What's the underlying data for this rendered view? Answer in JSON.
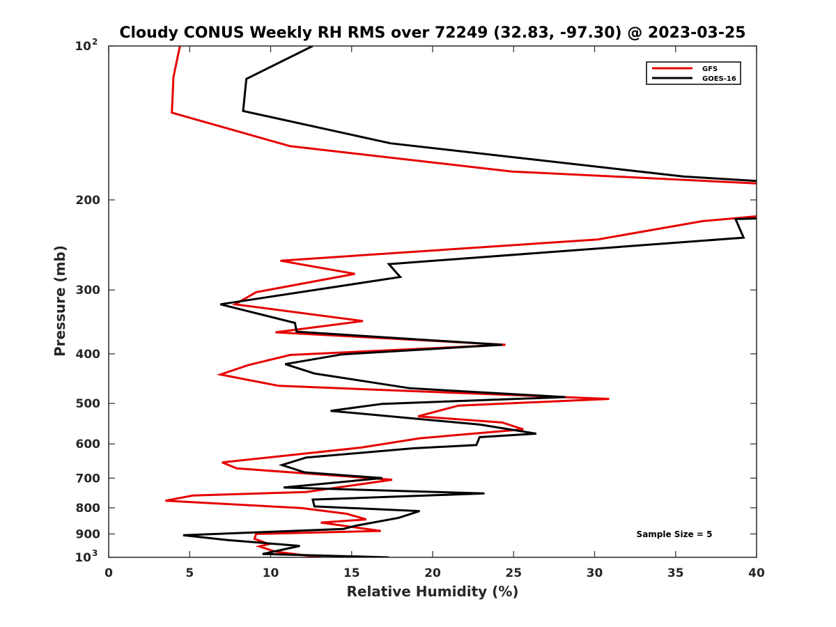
{
  "chart_data": {
    "type": "line",
    "title": "Cloudy CONUS Weekly RH RMS over 72249 (32.83, -97.30) @ 2023-03-25",
    "xlabel": "Relative Humidity (%)",
    "ylabel": "Pressure (mb)",
    "xlim": [
      0,
      40
    ],
    "ylim": [
      100,
      1000
    ],
    "yscale": "log",
    "y_reversed": true,
    "x_ticks": [
      0,
      5,
      10,
      15,
      20,
      25,
      30,
      35,
      40
    ],
    "x_tick_labels": [
      "0",
      "5",
      "10",
      "15",
      "20",
      "25",
      "30",
      "35",
      "40"
    ],
    "y_ticks": [
      {
        "value": 100,
        "base": "10",
        "exp": "2"
      },
      {
        "value": 200,
        "label": "200"
      },
      {
        "value": 300,
        "label": "300"
      },
      {
        "value": 400,
        "label": "400"
      },
      {
        "value": 500,
        "label": "500"
      },
      {
        "value": 600,
        "label": "600"
      },
      {
        "value": 700,
        "label": "700"
      },
      {
        "value": 800,
        "label": "800"
      },
      {
        "value": 900,
        "label": "900"
      },
      {
        "value": 1000,
        "base": "10",
        "exp": "3"
      }
    ],
    "grid": false,
    "legend_position": "top-right",
    "annotation": "Sample Size = 5",
    "series": [
      {
        "name": "GFS",
        "color": "#e60000",
        "points": [
          {
            "x": 4.4,
            "y": 100
          },
          {
            "x": 4.0,
            "y": 115
          },
          {
            "x": 3.9,
            "y": 135
          },
          {
            "x": 11.2,
            "y": 157
          },
          {
            "x": 24.9,
            "y": 176
          },
          {
            "x": 40.5,
            "y": 186
          },
          {
            "x": 41.0,
            "y": 214
          },
          {
            "x": 36.7,
            "y": 220
          },
          {
            "x": 30.2,
            "y": 239
          },
          {
            "x": 10.6,
            "y": 263
          },
          {
            "x": 15.2,
            "y": 279
          },
          {
            "x": 9.1,
            "y": 303
          },
          {
            "x": 7.8,
            "y": 320
          },
          {
            "x": 15.7,
            "y": 345
          },
          {
            "x": 10.3,
            "y": 363
          },
          {
            "x": 24.5,
            "y": 384
          },
          {
            "x": 11.2,
            "y": 402
          },
          {
            "x": 8.6,
            "y": 421
          },
          {
            "x": 6.9,
            "y": 439
          },
          {
            "x": 10.5,
            "y": 462
          },
          {
            "x": 30.9,
            "y": 490
          },
          {
            "x": 21.6,
            "y": 505
          },
          {
            "x": 19.1,
            "y": 530
          },
          {
            "x": 24.3,
            "y": 545
          },
          {
            "x": 25.6,
            "y": 562
          },
          {
            "x": 19.2,
            "y": 585
          },
          {
            "x": 15.6,
            "y": 610
          },
          {
            "x": 7.0,
            "y": 652
          },
          {
            "x": 7.9,
            "y": 670
          },
          {
            "x": 17.5,
            "y": 705
          },
          {
            "x": 12.2,
            "y": 745
          },
          {
            "x": 5.2,
            "y": 757
          },
          {
            "x": 3.5,
            "y": 775
          },
          {
            "x": 11.9,
            "y": 801
          },
          {
            "x": 14.7,
            "y": 822
          },
          {
            "x": 15.9,
            "y": 843
          },
          {
            "x": 13.1,
            "y": 855
          },
          {
            "x": 16.8,
            "y": 888
          },
          {
            "x": 9.1,
            "y": 900
          },
          {
            "x": 9.0,
            "y": 920
          },
          {
            "x": 9.9,
            "y": 942
          },
          {
            "x": 9.3,
            "y": 952
          },
          {
            "x": 10.3,
            "y": 975
          },
          {
            "x": 13.1,
            "y": 1000
          }
        ]
      },
      {
        "name": "GOES-16",
        "color": "#000000",
        "points": [
          {
            "x": 12.6,
            "y": 100
          },
          {
            "x": 8.5,
            "y": 116
          },
          {
            "x": 8.3,
            "y": 134
          },
          {
            "x": 17.4,
            "y": 155
          },
          {
            "x": 35.5,
            "y": 180
          },
          {
            "x": 40.5,
            "y": 184
          },
          {
            "x": 41.0,
            "y": 217
          },
          {
            "x": 38.7,
            "y": 218
          },
          {
            "x": 39.2,
            "y": 237
          },
          {
            "x": 17.3,
            "y": 267
          },
          {
            "x": 18.0,
            "y": 283
          },
          {
            "x": 6.9,
            "y": 320
          },
          {
            "x": 11.5,
            "y": 348
          },
          {
            "x": 11.6,
            "y": 362
          },
          {
            "x": 24.3,
            "y": 384
          },
          {
            "x": 14.4,
            "y": 401
          },
          {
            "x": 10.9,
            "y": 419
          },
          {
            "x": 12.7,
            "y": 437
          },
          {
            "x": 18.6,
            "y": 467
          },
          {
            "x": 28.2,
            "y": 486
          },
          {
            "x": 16.9,
            "y": 501
          },
          {
            "x": 13.7,
            "y": 517
          },
          {
            "x": 22.9,
            "y": 550
          },
          {
            "x": 26.4,
            "y": 573
          },
          {
            "x": 22.9,
            "y": 582
          },
          {
            "x": 22.7,
            "y": 603
          },
          {
            "x": 18.8,
            "y": 612
          },
          {
            "x": 12.2,
            "y": 638
          },
          {
            "x": 10.7,
            "y": 660
          },
          {
            "x": 12.1,
            "y": 682
          },
          {
            "x": 16.9,
            "y": 700
          },
          {
            "x": 10.8,
            "y": 730
          },
          {
            "x": 23.2,
            "y": 750
          },
          {
            "x": 12.6,
            "y": 771
          },
          {
            "x": 12.7,
            "y": 795
          },
          {
            "x": 19.2,
            "y": 812
          },
          {
            "x": 17.9,
            "y": 837
          },
          {
            "x": 15.2,
            "y": 868
          },
          {
            "x": 14.5,
            "y": 880
          },
          {
            "x": 4.6,
            "y": 905
          },
          {
            "x": 7.3,
            "y": 925
          },
          {
            "x": 11.8,
            "y": 950
          },
          {
            "x": 9.5,
            "y": 985
          },
          {
            "x": 17.3,
            "y": 1000
          }
        ]
      }
    ]
  }
}
